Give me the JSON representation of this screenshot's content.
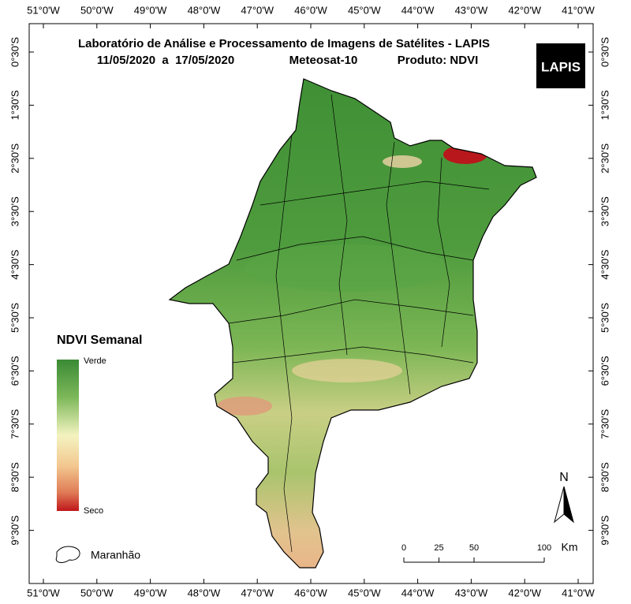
{
  "title": {
    "line1": "Laboratório de Análise e Processamento de Imagens de Satélites - LAPIS",
    "period": "11/05/2020  a  17/05/2020",
    "satellite": "Meteosat-10",
    "product": "Produto: NDVI"
  },
  "logo": "LAPIS",
  "axes": {
    "longitude": [
      "51°0'W",
      "50°0'W",
      "49°0'W",
      "48°0'W",
      "47°0'W",
      "46°0'W",
      "45°0'W",
      "44°0'W",
      "43°0'W",
      "42°0'W",
      "41°0'W"
    ],
    "latitude": [
      "0°30'S",
      "1°30'S",
      "2°30'S",
      "3°30'S",
      "4°30'S",
      "5°30'S",
      "6°30'S",
      "7°30'S",
      "8°30'S",
      "9°30'S"
    ]
  },
  "legend": {
    "title": "NDVI Semanal",
    "high": "Verde",
    "low": "Seco"
  },
  "boundary_label": "Maranhão",
  "scale": {
    "ticks": [
      0,
      25,
      50,
      100
    ],
    "unit": "Km"
  },
  "north": "N"
}
